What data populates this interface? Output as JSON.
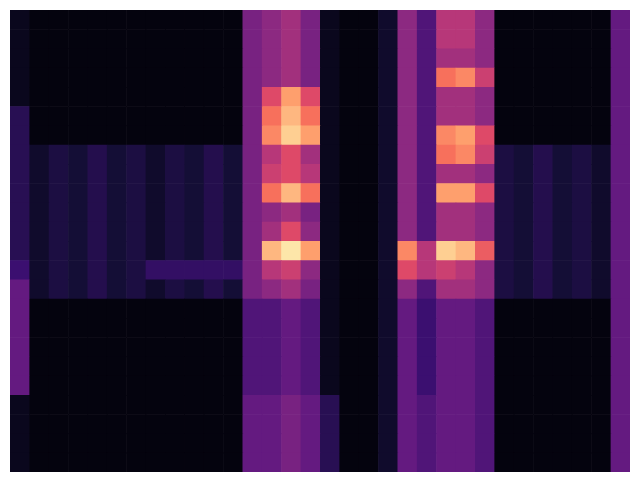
{
  "chart_data": {
    "type": "heatmap",
    "color": "magma",
    "tick_labels": false,
    "vlim": [
      0,
      1
    ],
    "cells": [
      [
        0.05,
        0.02,
        0.02,
        0.02,
        0.02,
        0.02,
        0.02,
        0.02,
        0.02,
        0.02,
        0.02,
        0.02,
        0.35,
        0.4,
        0.45,
        0.35,
        0.05,
        0.02,
        0.02,
        0.08,
        0.4,
        0.25,
        0.5,
        0.5,
        0.4,
        0.02,
        0.02,
        0.02,
        0.02,
        0.02,
        0.02,
        0.3
      ],
      [
        0.05,
        0.02,
        0.02,
        0.02,
        0.02,
        0.02,
        0.02,
        0.02,
        0.02,
        0.02,
        0.02,
        0.02,
        0.35,
        0.4,
        0.45,
        0.35,
        0.05,
        0.02,
        0.02,
        0.08,
        0.4,
        0.25,
        0.5,
        0.5,
        0.4,
        0.02,
        0.02,
        0.02,
        0.02,
        0.02,
        0.02,
        0.3
      ],
      [
        0.05,
        0.02,
        0.02,
        0.02,
        0.02,
        0.02,
        0.02,
        0.02,
        0.02,
        0.02,
        0.02,
        0.02,
        0.35,
        0.4,
        0.45,
        0.35,
        0.05,
        0.02,
        0.02,
        0.08,
        0.4,
        0.25,
        0.45,
        0.45,
        0.4,
        0.02,
        0.02,
        0.02,
        0.02,
        0.02,
        0.02,
        0.3
      ],
      [
        0.05,
        0.02,
        0.02,
        0.02,
        0.02,
        0.02,
        0.02,
        0.02,
        0.02,
        0.02,
        0.02,
        0.02,
        0.35,
        0.4,
        0.45,
        0.35,
        0.05,
        0.02,
        0.02,
        0.08,
        0.4,
        0.25,
        0.7,
        0.75,
        0.55,
        0.02,
        0.02,
        0.02,
        0.02,
        0.02,
        0.02,
        0.3
      ],
      [
        0.05,
        0.02,
        0.02,
        0.02,
        0.02,
        0.02,
        0.02,
        0.02,
        0.02,
        0.02,
        0.02,
        0.02,
        0.35,
        0.6,
        0.8,
        0.6,
        0.05,
        0.02,
        0.02,
        0.08,
        0.4,
        0.25,
        0.45,
        0.45,
        0.4,
        0.02,
        0.02,
        0.02,
        0.02,
        0.02,
        0.02,
        0.3
      ],
      [
        0.15,
        0.02,
        0.02,
        0.02,
        0.02,
        0.02,
        0.02,
        0.02,
        0.02,
        0.02,
        0.02,
        0.02,
        0.35,
        0.7,
        0.85,
        0.7,
        0.05,
        0.02,
        0.02,
        0.08,
        0.4,
        0.25,
        0.45,
        0.45,
        0.4,
        0.02,
        0.02,
        0.02,
        0.02,
        0.02,
        0.02,
        0.3
      ],
      [
        0.15,
        0.02,
        0.02,
        0.02,
        0.02,
        0.02,
        0.02,
        0.02,
        0.02,
        0.02,
        0.02,
        0.02,
        0.35,
        0.75,
        0.9,
        0.8,
        0.05,
        0.02,
        0.02,
        0.08,
        0.4,
        0.25,
        0.75,
        0.8,
        0.6,
        0.02,
        0.02,
        0.02,
        0.02,
        0.02,
        0.02,
        0.3
      ],
      [
        0.15,
        0.08,
        0.12,
        0.1,
        0.14,
        0.1,
        0.12,
        0.08,
        0.12,
        0.1,
        0.14,
        0.1,
        0.35,
        0.5,
        0.6,
        0.45,
        0.05,
        0.02,
        0.02,
        0.08,
        0.4,
        0.25,
        0.7,
        0.75,
        0.55,
        0.12,
        0.1,
        0.14,
        0.1,
        0.12,
        0.08,
        0.3
      ],
      [
        0.15,
        0.08,
        0.12,
        0.1,
        0.14,
        0.1,
        0.12,
        0.08,
        0.12,
        0.1,
        0.14,
        0.1,
        0.35,
        0.55,
        0.6,
        0.5,
        0.05,
        0.02,
        0.02,
        0.08,
        0.4,
        0.25,
        0.45,
        0.45,
        0.4,
        0.12,
        0.1,
        0.14,
        0.1,
        0.12,
        0.08,
        0.3
      ],
      [
        0.15,
        0.08,
        0.12,
        0.1,
        0.14,
        0.1,
        0.12,
        0.08,
        0.12,
        0.1,
        0.14,
        0.1,
        0.35,
        0.7,
        0.85,
        0.7,
        0.05,
        0.02,
        0.02,
        0.08,
        0.4,
        0.25,
        0.8,
        0.8,
        0.6,
        0.12,
        0.1,
        0.14,
        0.1,
        0.12,
        0.08,
        0.3
      ],
      [
        0.15,
        0.08,
        0.12,
        0.1,
        0.14,
        0.1,
        0.12,
        0.08,
        0.12,
        0.1,
        0.14,
        0.1,
        0.35,
        0.4,
        0.45,
        0.35,
        0.05,
        0.02,
        0.02,
        0.08,
        0.4,
        0.25,
        0.45,
        0.45,
        0.4,
        0.12,
        0.1,
        0.14,
        0.1,
        0.12,
        0.08,
        0.3
      ],
      [
        0.15,
        0.08,
        0.12,
        0.1,
        0.14,
        0.1,
        0.12,
        0.08,
        0.12,
        0.1,
        0.14,
        0.1,
        0.35,
        0.45,
        0.6,
        0.4,
        0.05,
        0.02,
        0.02,
        0.08,
        0.4,
        0.25,
        0.45,
        0.45,
        0.4,
        0.12,
        0.1,
        0.14,
        0.1,
        0.12,
        0.08,
        0.3
      ],
      [
        0.15,
        0.08,
        0.12,
        0.1,
        0.14,
        0.1,
        0.12,
        0.08,
        0.12,
        0.1,
        0.14,
        0.1,
        0.35,
        0.85,
        0.95,
        0.8,
        0.05,
        0.02,
        0.02,
        0.08,
        0.75,
        0.5,
        0.9,
        0.85,
        0.65,
        0.12,
        0.1,
        0.14,
        0.1,
        0.12,
        0.08,
        0.3
      ],
      [
        0.2,
        0.08,
        0.12,
        0.1,
        0.14,
        0.1,
        0.12,
        0.18,
        0.18,
        0.18,
        0.18,
        0.18,
        0.35,
        0.5,
        0.55,
        0.4,
        0.05,
        0.02,
        0.02,
        0.08,
        0.6,
        0.5,
        0.55,
        0.5,
        0.4,
        0.12,
        0.1,
        0.14,
        0.1,
        0.12,
        0.08,
        0.3
      ],
      [
        0.3,
        0.08,
        0.12,
        0.1,
        0.14,
        0.1,
        0.12,
        0.08,
        0.12,
        0.1,
        0.14,
        0.1,
        0.35,
        0.4,
        0.45,
        0.35,
        0.05,
        0.02,
        0.02,
        0.08,
        0.4,
        0.25,
        0.45,
        0.45,
        0.4,
        0.12,
        0.1,
        0.14,
        0.1,
        0.12,
        0.08,
        0.3
      ],
      [
        0.3,
        0.02,
        0.02,
        0.02,
        0.02,
        0.02,
        0.02,
        0.02,
        0.02,
        0.02,
        0.02,
        0.02,
        0.25,
        0.25,
        0.3,
        0.25,
        0.05,
        0.02,
        0.02,
        0.08,
        0.3,
        0.2,
        0.3,
        0.3,
        0.25,
        0.02,
        0.02,
        0.02,
        0.02,
        0.02,
        0.02,
        0.3
      ],
      [
        0.3,
        0.02,
        0.02,
        0.02,
        0.02,
        0.02,
        0.02,
        0.02,
        0.02,
        0.02,
        0.02,
        0.02,
        0.25,
        0.25,
        0.3,
        0.25,
        0.05,
        0.02,
        0.02,
        0.08,
        0.3,
        0.2,
        0.3,
        0.3,
        0.25,
        0.02,
        0.02,
        0.02,
        0.02,
        0.02,
        0.02,
        0.3
      ],
      [
        0.3,
        0.02,
        0.02,
        0.02,
        0.02,
        0.02,
        0.02,
        0.02,
        0.02,
        0.02,
        0.02,
        0.02,
        0.25,
        0.25,
        0.3,
        0.25,
        0.05,
        0.02,
        0.02,
        0.08,
        0.3,
        0.2,
        0.3,
        0.3,
        0.25,
        0.02,
        0.02,
        0.02,
        0.02,
        0.02,
        0.02,
        0.3
      ],
      [
        0.3,
        0.02,
        0.02,
        0.02,
        0.02,
        0.02,
        0.02,
        0.02,
        0.02,
        0.02,
        0.02,
        0.02,
        0.25,
        0.25,
        0.3,
        0.25,
        0.05,
        0.02,
        0.02,
        0.08,
        0.3,
        0.2,
        0.3,
        0.3,
        0.25,
        0.02,
        0.02,
        0.02,
        0.02,
        0.02,
        0.02,
        0.3
      ],
      [
        0.3,
        0.02,
        0.02,
        0.02,
        0.02,
        0.02,
        0.02,
        0.02,
        0.02,
        0.02,
        0.02,
        0.02,
        0.25,
        0.25,
        0.3,
        0.25,
        0.05,
        0.02,
        0.02,
        0.08,
        0.3,
        0.2,
        0.3,
        0.3,
        0.25,
        0.02,
        0.02,
        0.02,
        0.02,
        0.02,
        0.02,
        0.3
      ],
      [
        0.05,
        0.02,
        0.02,
        0.02,
        0.02,
        0.02,
        0.02,
        0.02,
        0.02,
        0.02,
        0.02,
        0.02,
        0.3,
        0.3,
        0.35,
        0.3,
        0.15,
        0.02,
        0.02,
        0.08,
        0.3,
        0.25,
        0.3,
        0.3,
        0.25,
        0.02,
        0.02,
        0.02,
        0.02,
        0.02,
        0.02,
        0.3
      ],
      [
        0.05,
        0.02,
        0.02,
        0.02,
        0.02,
        0.02,
        0.02,
        0.02,
        0.02,
        0.02,
        0.02,
        0.02,
        0.3,
        0.3,
        0.35,
        0.3,
        0.15,
        0.02,
        0.02,
        0.08,
        0.3,
        0.25,
        0.3,
        0.3,
        0.25,
        0.02,
        0.02,
        0.02,
        0.02,
        0.02,
        0.02,
        0.3
      ],
      [
        0.05,
        0.02,
        0.02,
        0.02,
        0.02,
        0.02,
        0.02,
        0.02,
        0.02,
        0.02,
        0.02,
        0.02,
        0.3,
        0.3,
        0.35,
        0.3,
        0.15,
        0.02,
        0.02,
        0.08,
        0.3,
        0.25,
        0.3,
        0.3,
        0.25,
        0.02,
        0.02,
        0.02,
        0.02,
        0.02,
        0.02,
        0.3
      ],
      [
        0.05,
        0.02,
        0.02,
        0.02,
        0.02,
        0.02,
        0.02,
        0.02,
        0.02,
        0.02,
        0.02,
        0.02,
        0.3,
        0.3,
        0.35,
        0.3,
        0.15,
        0.02,
        0.02,
        0.08,
        0.3,
        0.25,
        0.3,
        0.3,
        0.25,
        0.02,
        0.02,
        0.02,
        0.02,
        0.02,
        0.02,
        0.3
      ]
    ]
  }
}
